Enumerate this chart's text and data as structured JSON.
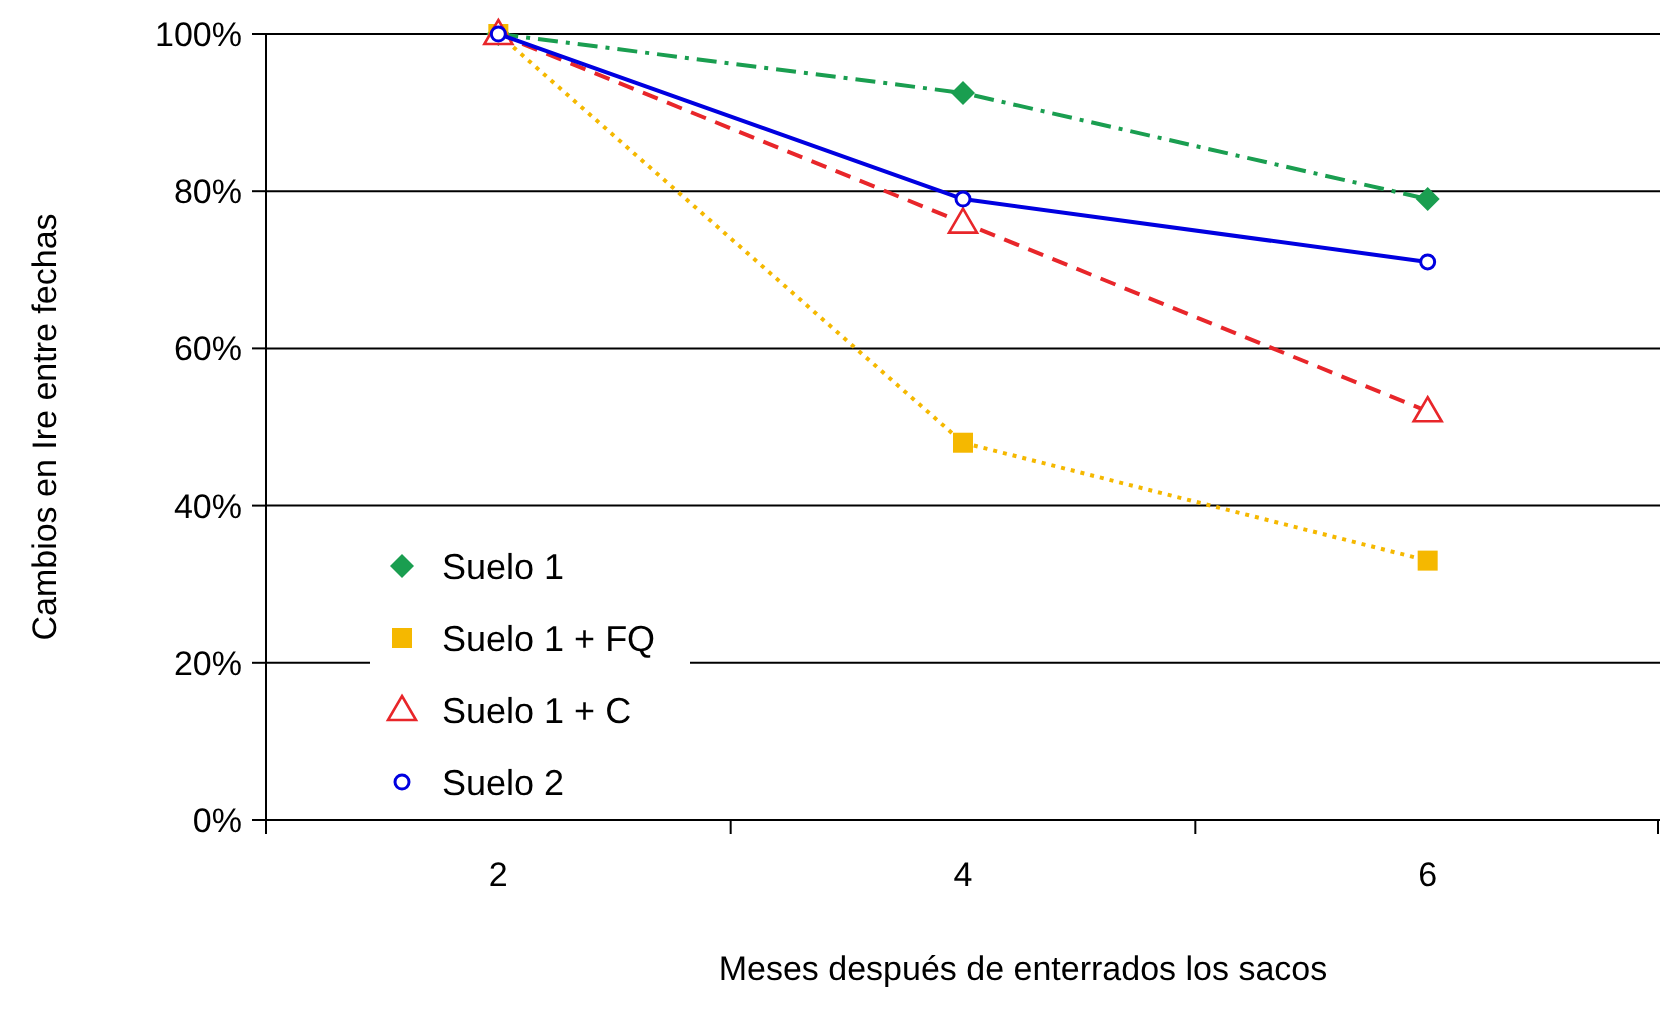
{
  "chart_data": {
    "type": "line",
    "xlabel": "Meses después de enterrados los sacos",
    "ylabel": "Cambios en Ire entre fechas",
    "categories": [
      "2",
      "4",
      "6"
    ],
    "ylim": [
      0,
      100
    ],
    "yticks": [
      {
        "value": 0,
        "label": "0%"
      },
      {
        "value": 20,
        "label": "20%"
      },
      {
        "value": 40,
        "label": "40%"
      },
      {
        "value": 60,
        "label": "60%"
      },
      {
        "value": 80,
        "label": "80%"
      },
      {
        "value": 100,
        "label": "100%"
      }
    ],
    "grid": "y",
    "legend": "bottom left",
    "series": [
      {
        "name": "Suelo 1",
        "color": "#1a9e50",
        "values": [
          100,
          92.5,
          79
        ],
        "marker": "diamond",
        "line_style": "dashdot"
      },
      {
        "name": "Suelo 1 + FQ",
        "color": "#f5b800",
        "values": [
          100,
          48,
          33
        ],
        "marker": "square",
        "line_style": "dotted"
      },
      {
        "name": "Suelo 1 + C",
        "color": "#e8262a",
        "values": [
          100,
          76,
          52
        ],
        "marker": "triangle",
        "line_style": "dashed"
      },
      {
        "name": "Suelo 2",
        "color": "#0000e0",
        "values": [
          100,
          79,
          71
        ],
        "marker": "circle",
        "line_style": "solid"
      }
    ]
  }
}
